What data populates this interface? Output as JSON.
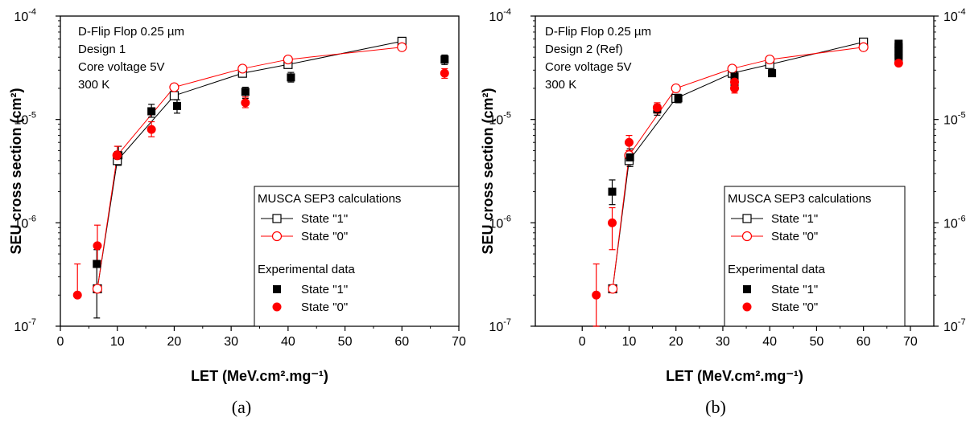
{
  "captions": [
    "(a)",
    "(b)"
  ],
  "chart_data": [
    {
      "type": "scatter",
      "panel": "(a)",
      "xlabel": "LET (MeV.cm².mg⁻¹)",
      "ylabel": "SEU cross section (cm²)",
      "xlim": [
        0,
        70
      ],
      "ylim": [
        1e-07,
        0.0001
      ],
      "yscale": "log",
      "xticks": [
        0,
        10,
        20,
        30,
        40,
        50,
        60,
        70
      ],
      "yticks": [
        1e-07,
        1e-06,
        1e-05,
        0.0001
      ],
      "right_axis": false,
      "annotation": [
        "D-Flip Flop 0.25 µm",
        "Design 1",
        "Core voltage 5V",
        "300 K"
      ],
      "legend_position": "lower-right",
      "legend": {
        "calc_title": "MUSCA SEP3 calculations",
        "exp_title": "Experimental data",
        "calc1": "State \"1\"",
        "calc0": "State \"0\"",
        "exp1": "State \"1\"",
        "exp0": "State \"0\""
      },
      "series": [
        {
          "name": "State \"1\"",
          "group": "MUSCA SEP3 calculations",
          "kind": "calc",
          "color": "#000000",
          "marker": "open-square",
          "x": [
            6.5,
            10,
            20,
            32,
            40,
            60
          ],
          "y": [
            2.3e-07,
            4e-06,
            1.7e-05,
            2.8e-05,
            3.4e-05,
            5.7e-05
          ]
        },
        {
          "name": "State \"0\"",
          "group": "MUSCA SEP3 calculations",
          "kind": "calc",
          "color": "#ff0000",
          "marker": "open-circle",
          "x": [
            6.5,
            10,
            20,
            32,
            40,
            60
          ],
          "y": [
            2.3e-07,
            4.5e-06,
            2.05e-05,
            3.1e-05,
            3.8e-05,
            5e-05
          ]
        },
        {
          "name": "State \"1\"",
          "group": "Experimental data",
          "kind": "exp",
          "color": "#000000",
          "marker": "filled-square",
          "x": [
            6.4,
            10.2,
            16,
            20.5,
            32.5,
            40.5,
            67.5
          ],
          "y": [
            4e-07,
            4.5e-06,
            1.2e-05,
            1.35e-05,
            1.85e-05,
            2.55e-05,
            3.8e-05
          ],
          "err_low": [
            1.2e-07,
            3.6e-06,
            1.05e-05,
            1.15e-05,
            1.6e-05,
            2.3e-05,
            3.4e-05
          ],
          "err_high": [
            5.5e-07,
            5.5e-06,
            1.4e-05,
            1.55e-05,
            2.05e-05,
            2.85e-05,
            4.2e-05
          ]
        },
        {
          "name": "State \"0\"",
          "group": "Experimental data",
          "kind": "exp",
          "color": "#ff0000",
          "marker": "filled-circle",
          "x": [
            3,
            6.5,
            10,
            16,
            32.5,
            67.5
          ],
          "y": [
            2e-07,
            6e-07,
            4.5e-06,
            8e-06,
            1.45e-05,
            2.8e-05
          ],
          "err_low": [
            2e-07,
            4e-07,
            3.8e-06,
            6.8e-06,
            1.3e-05,
            2.5e-05
          ],
          "err_high": [
            4e-07,
            9.5e-07,
            5.5e-06,
            9.5e-06,
            1.65e-05,
            3.1e-05
          ]
        }
      ]
    },
    {
      "type": "scatter",
      "panel": "(b)",
      "xlabel": "LET (MeV.cm².mg⁻¹)",
      "ylabel": "SEU cross section (cm²)",
      "xlim": [
        -10,
        75
      ],
      "ylim": [
        1e-07,
        0.0001
      ],
      "yscale": "log",
      "xticks": [
        0,
        10,
        20,
        30,
        40,
        50,
        60,
        70
      ],
      "yticks": [
        1e-07,
        1e-06,
        1e-05,
        0.0001
      ],
      "right_axis": true,
      "annotation": [
        "D-Flip Flop 0.25 µm",
        "Design 2 (Ref)",
        "Core voltage 5V",
        "300 K"
      ],
      "legend_position": "lower-right",
      "legend": {
        "calc_title": "MUSCA SEP3 calculations",
        "exp_title": "Experimental data",
        "calc1": "State \"1\"",
        "calc0": "State \"0\"",
        "exp1": "State \"1\"",
        "exp0": "State \"0\""
      },
      "series": [
        {
          "name": "State \"1\"",
          "group": "MUSCA SEP3 calculations",
          "kind": "calc",
          "color": "#000000",
          "marker": "open-square",
          "x": [
            6.5,
            10,
            20,
            32,
            40,
            60
          ],
          "y": [
            2.3e-07,
            4e-06,
            1.6e-05,
            2.8e-05,
            3.4e-05,
            5.6e-05
          ]
        },
        {
          "name": "State \"0\"",
          "group": "MUSCA SEP3 calculations",
          "kind": "calc",
          "color": "#ff0000",
          "marker": "open-circle",
          "x": [
            6.5,
            10,
            20,
            32,
            40,
            60
          ],
          "y": [
            2.3e-07,
            4.5e-06,
            2e-05,
            3.1e-05,
            3.8e-05,
            5e-05
          ]
        },
        {
          "name": "State \"1\"",
          "group": "Experimental data",
          "kind": "exp",
          "color": "#000000",
          "marker": "filled-square",
          "x": [
            6.4,
            10.2,
            16,
            20.5,
            32.5,
            32.5,
            40.5,
            67.5,
            67.5,
            67.5,
            67.5,
            67.5
          ],
          "y": [
            2e-06,
            4.3e-06,
            1.25e-05,
            1.6e-05,
            2.2e-05,
            2.6e-05,
            2.8e-05,
            4.2e-05,
            4.6e-05,
            5e-05,
            5.4e-05,
            3.9e-05
          ],
          "err_low": [
            1.5e-06,
            3.5e-06,
            1.1e-05,
            1.45e-05,
            2e-05,
            2.3e-05,
            2.6e-05,
            4e-05,
            4.4e-05,
            4.8e-05,
            5.2e-05,
            3.7e-05
          ],
          "err_high": [
            2.6e-06,
            5.2e-06,
            1.4e-05,
            1.75e-05,
            2.4e-05,
            2.9e-05,
            3.05e-05,
            4.4e-05,
            4.8e-05,
            5.2e-05,
            5.6e-05,
            4.1e-05
          ]
        },
        {
          "name": "State \"0\"",
          "group": "Experimental data",
          "kind": "exp",
          "color": "#ff0000",
          "marker": "filled-circle",
          "x": [
            3,
            6.4,
            10,
            16,
            32.5,
            32.5,
            67.5
          ],
          "y": [
            2e-07,
            1e-06,
            6e-06,
            1.3e-05,
            2e-05,
            2.3e-05,
            3.5e-05
          ],
          "err_low": [
            1e-07,
            5.5e-07,
            5e-06,
            1.15e-05,
            1.8e-05,
            2.1e-05,
            3.3e-05
          ],
          "err_high": [
            4e-07,
            1.4e-06,
            7e-06,
            1.45e-05,
            2.2e-05,
            2.5e-05,
            3.7e-05
          ]
        }
      ]
    }
  ]
}
